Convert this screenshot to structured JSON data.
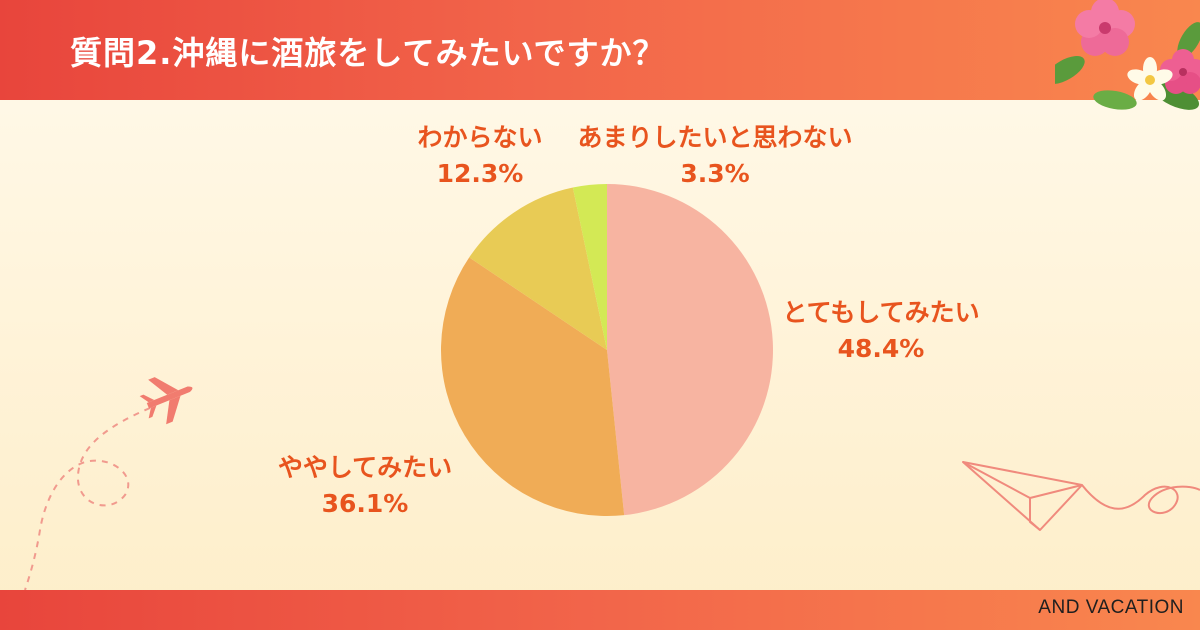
{
  "header": {
    "title": "質問2.沖縄に酒旅をしてみたいですか？"
  },
  "footer": {
    "brand": "AND VACATION"
  },
  "icons": [
    "airplane-icon",
    "paper-plane-icon",
    "hibiscus-flowers-icon"
  ],
  "colors": {
    "header_start": "#e8453c",
    "header_end": "#f9874e",
    "label": "#e8541e"
  },
  "chart_data": {
    "type": "pie",
    "categories": [
      "とてもしてみたい",
      "ややしてみたい",
      "わからない",
      "あまりしたいと思わない"
    ],
    "values": [
      48.4,
      36.1,
      12.3,
      3.3
    ],
    "value_labels": [
      "48.4%",
      "36.1%",
      "12.3%",
      "3.3%"
    ],
    "colors": [
      "#f7b4a1",
      "#f0ac56",
      "#e8cb55",
      "#d3e955"
    ],
    "start": "12 o'clock, clockwise",
    "title": "質問2.沖縄に酒旅をしてみたいですか？",
    "legend": "none"
  }
}
